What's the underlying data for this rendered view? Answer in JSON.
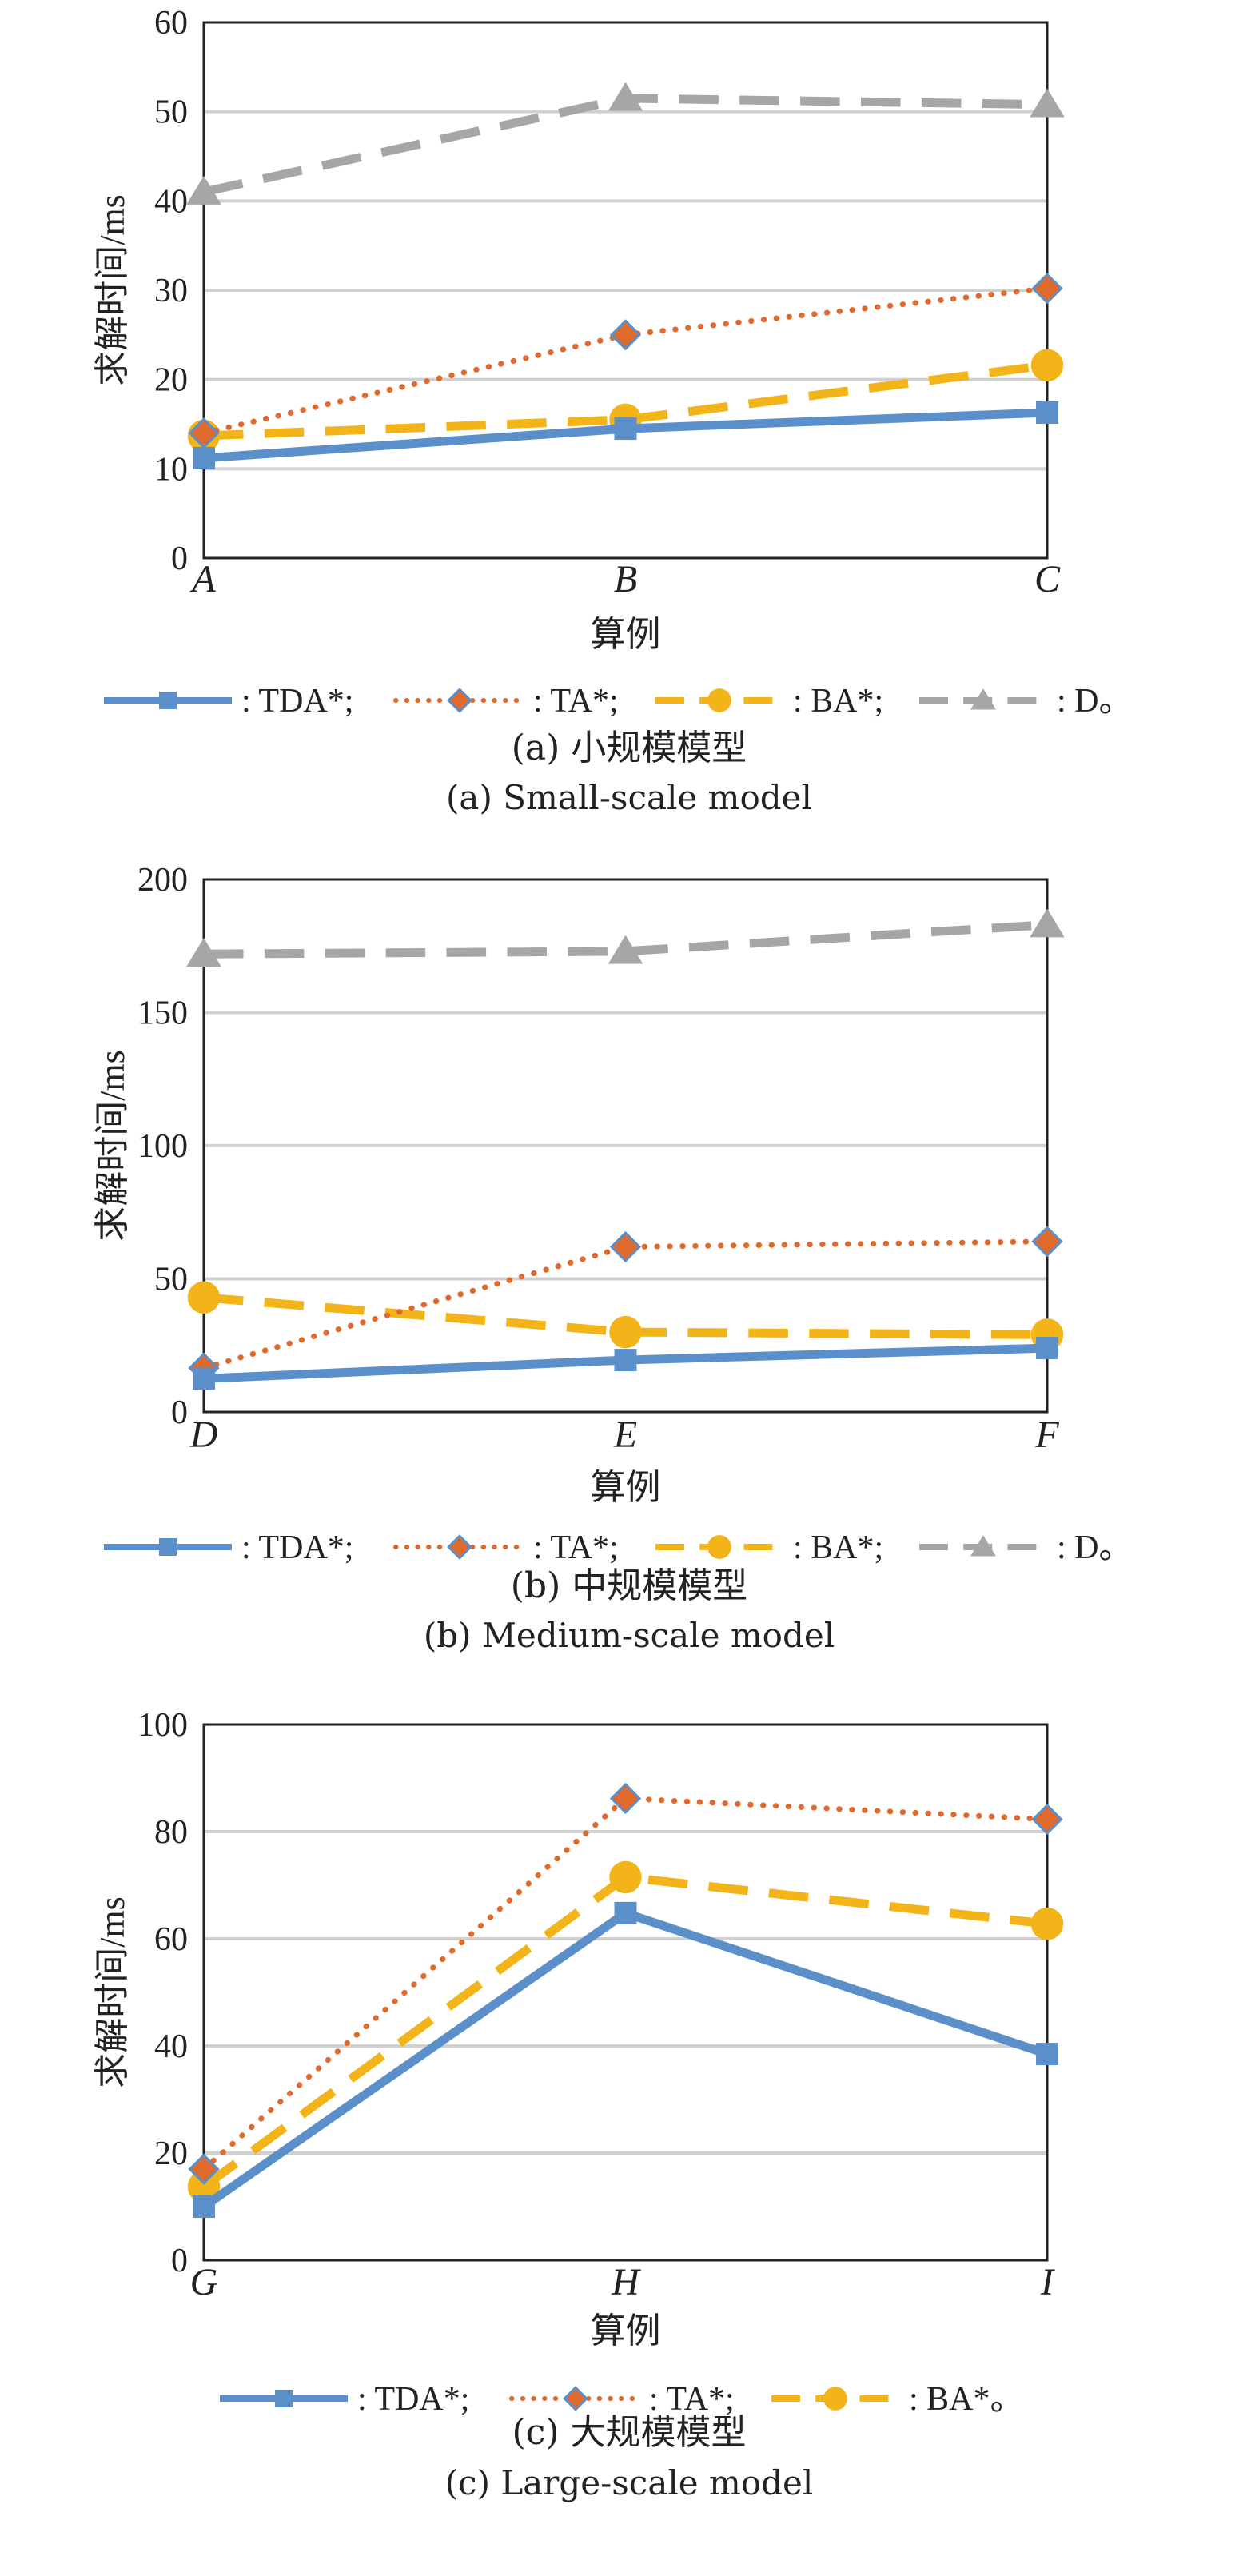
{
  "chart_data": [
    {
      "id": "a",
      "type": "line",
      "ylabel": "求解时间/ms",
      "xlabel": "算例",
      "categories": [
        "A",
        "B",
        "C"
      ],
      "ylim": [
        0,
        60
      ],
      "yticks": [
        "0",
        "10",
        "20",
        "30",
        "40",
        "50",
        "60"
      ],
      "series": [
        {
          "name": "TDA*",
          "label": ": TDA*;",
          "color": "#5b8fc9",
          "style": "solid",
          "marker": "square",
          "values": [
            11.2,
            14.5,
            16.3
          ]
        },
        {
          "name": "TA*",
          "label": ": TA*;",
          "color": "#e0692c",
          "style": "dotted",
          "marker": "diamond",
          "values": [
            14.0,
            25.0,
            30.2
          ]
        },
        {
          "name": "BA*",
          "label": ": BA*;",
          "color": "#f2b418",
          "style": "dashed",
          "marker": "circle",
          "values": [
            13.7,
            15.5,
            21.6
          ]
        },
        {
          "name": "D",
          "label": ": D。",
          "color": "#a6a6a6",
          "style": "dashed",
          "marker": "triangle",
          "values": [
            41.0,
            51.5,
            50.8
          ]
        }
      ],
      "caption_cn": "(a) 小规模模型",
      "caption_en": "(a) Small-scale model"
    },
    {
      "id": "b",
      "type": "line",
      "ylabel": "求解时间/ms",
      "xlabel": "算例",
      "categories": [
        "D",
        "E",
        "F"
      ],
      "ylim": [
        0,
        200
      ],
      "yticks": [
        "0",
        "50",
        "100",
        "150",
        "200"
      ],
      "series": [
        {
          "name": "TDA*",
          "label": ": TDA*;",
          "color": "#5b8fc9",
          "style": "solid",
          "marker": "square",
          "values": [
            12.5,
            19.5,
            24.0
          ]
        },
        {
          "name": "TA*",
          "label": ": TA*;",
          "color": "#e0692c",
          "style": "dotted",
          "marker": "diamond",
          "values": [
            16.5,
            62.0,
            64.0
          ]
        },
        {
          "name": "BA*",
          "label": ": BA*;",
          "color": "#f2b418",
          "style": "dashed",
          "marker": "circle",
          "values": [
            43.0,
            30.0,
            29.0
          ]
        },
        {
          "name": "D",
          "label": ": D。",
          "color": "#a6a6a6",
          "style": "dashed",
          "marker": "triangle",
          "values": [
            172.0,
            173.0,
            183.0
          ]
        }
      ],
      "caption_cn": "(b) 中规模模型",
      "caption_en": "(b) Medium-scale model"
    },
    {
      "id": "c",
      "type": "line",
      "ylabel": "求解时间/ms",
      "xlabel": "算例",
      "categories": [
        "G",
        "H",
        "I"
      ],
      "ylim": [
        0,
        100
      ],
      "yticks": [
        "0",
        "20",
        "40",
        "60",
        "80",
        "100"
      ],
      "series": [
        {
          "name": "TDA*",
          "label": ": TDA*;",
          "color": "#5b8fc9",
          "style": "solid",
          "marker": "square",
          "values": [
            10.0,
            64.8,
            38.5
          ]
        },
        {
          "name": "TA*",
          "label": ": TA*;",
          "color": "#e0692c",
          "style": "dotted",
          "marker": "diamond",
          "values": [
            17.0,
            86.2,
            82.3
          ]
        },
        {
          "name": "BA*",
          "label": ": BA*。",
          "color": "#f2b418",
          "style": "dashed",
          "marker": "circle",
          "values": [
            13.7,
            71.5,
            62.8
          ]
        }
      ],
      "caption_cn": "(c) 大规模模型",
      "caption_en": "(c) Large-scale model"
    }
  ]
}
